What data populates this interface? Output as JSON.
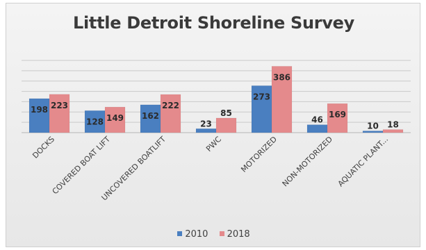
{
  "chart_data": {
    "type": "bar",
    "title": "Little Detroit Shoreline Survey",
    "categories": [
      "DOCKS",
      "COVERED BOAT LIFT",
      "UNCOVERED BOATLIFT",
      "PWC",
      "MOTORIZED",
      "NON-MOTORIZED",
      "AQUATIC PLANT..."
    ],
    "series": [
      {
        "name": "2010",
        "values": [
          198,
          128,
          162,
          23,
          273,
          46,
          10
        ],
        "color": "#4a7fc0"
      },
      {
        "name": "2018",
        "values": [
          223,
          149,
          222,
          85,
          386,
          169,
          18
        ],
        "color": "#e48a8c"
      }
    ],
    "ylim": [
      0,
      420
    ],
    "grid": true,
    "legend_position": "bottom"
  }
}
